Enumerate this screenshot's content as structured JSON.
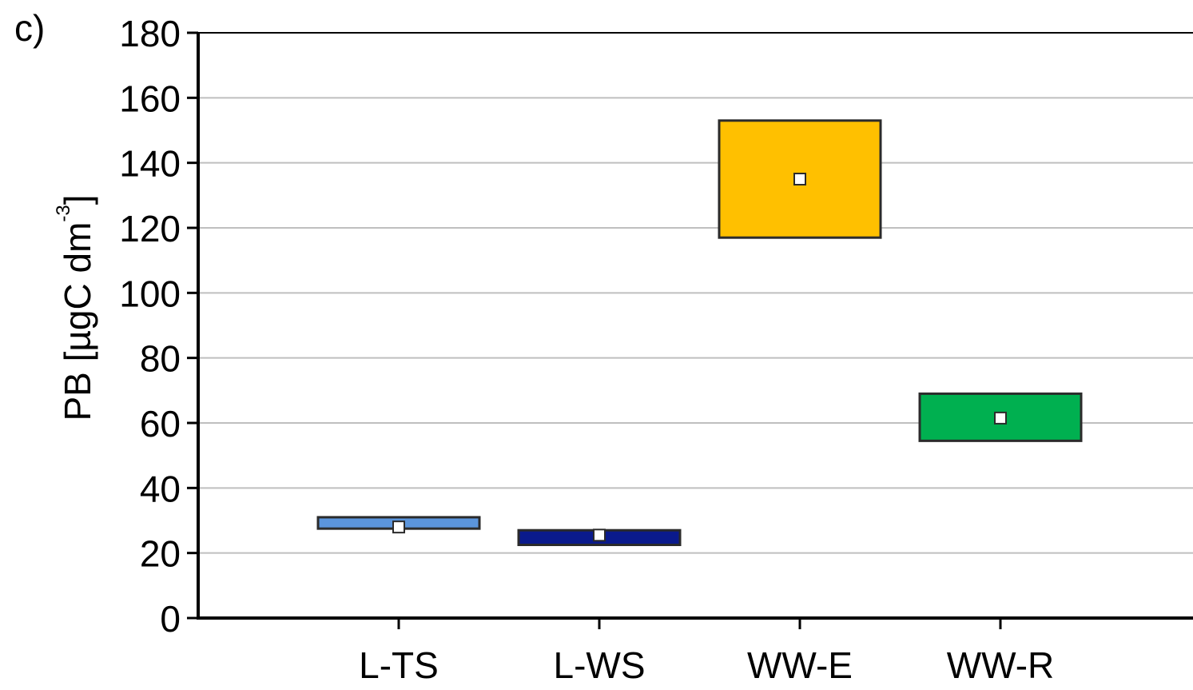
{
  "panel_label": "c)",
  "chart_data": {
    "type": "box",
    "ylabel": {
      "text": "PB [µgC dm",
      "superscript": "-3",
      "suffix": "]"
    },
    "ylim": [
      0,
      180
    ],
    "yticks": [
      "0",
      "20",
      "40",
      "60",
      "80",
      "100",
      "120",
      "140",
      "160",
      "180"
    ],
    "grid": true,
    "categories": [
      "L-TS",
      "L-WS",
      "WW-E",
      "WW-R"
    ],
    "boxes": [
      {
        "category": "L-TS",
        "low": 27.5,
        "high": 31,
        "marker": 28,
        "color": "#5B95DC"
      },
      {
        "category": "L-WS",
        "low": 22.5,
        "high": 27,
        "marker": 25.5,
        "color": "#0A1A8C"
      },
      {
        "category": "WW-E",
        "low": 117,
        "high": 153,
        "marker": 135,
        "color": "#FFC000"
      },
      {
        "category": "WW-R",
        "low": 54.5,
        "high": 69,
        "marker": 61.5,
        "color": "#00B050"
      }
    ]
  }
}
